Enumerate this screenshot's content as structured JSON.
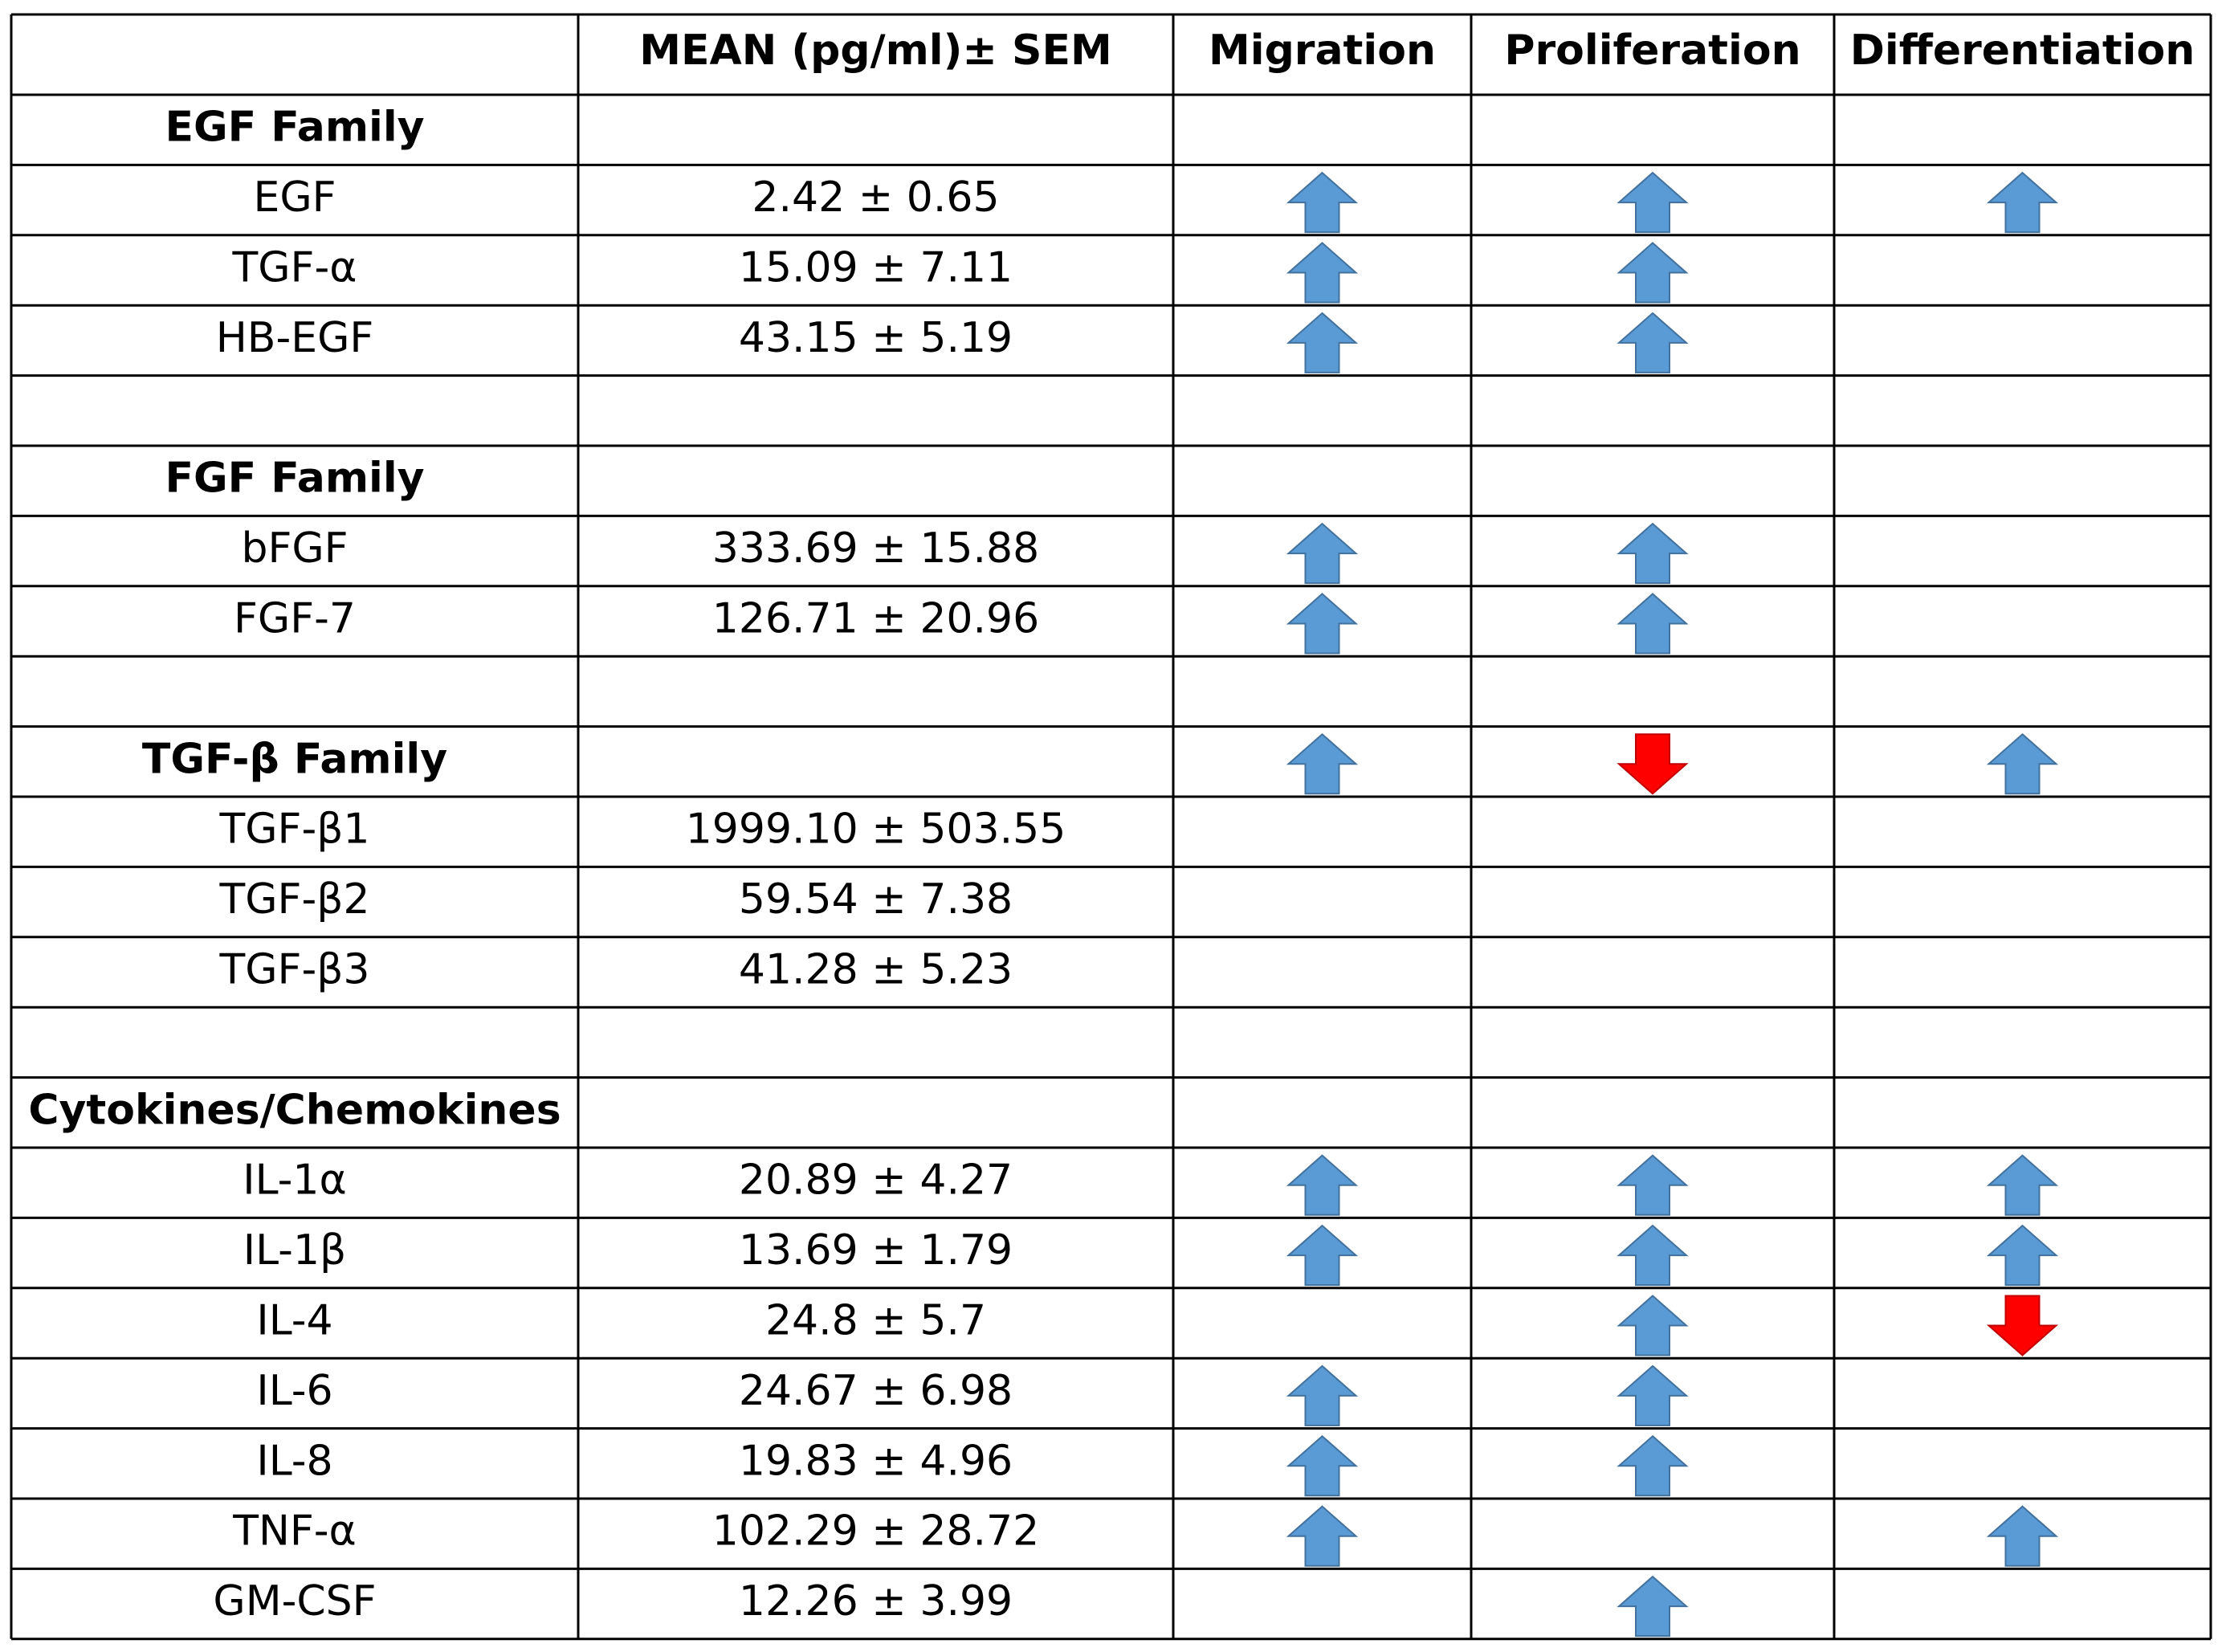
{
  "table": {
    "headers": [
      null,
      "MEAN (pg/ml)± SEM",
      "Migration",
      "Proliferation",
      "Differentiation"
    ],
    "rows": [
      {
        "cells": [
          "EGF Family",
          null,
          null,
          null,
          null
        ],
        "section": true
      },
      {
        "cells": [
          "EGF",
          "2.42 ± 0.65",
          "up",
          "up",
          "up"
        ]
      },
      {
        "cells": [
          "TGF-α",
          "15.09 ± 7.11",
          "up",
          "up",
          null
        ]
      },
      {
        "cells": [
          "HB-EGF",
          "43.15 ± 5.19",
          "up",
          "up",
          null
        ]
      },
      {
        "cells": [
          null,
          null,
          null,
          null,
          null
        ]
      },
      {
        "cells": [
          "FGF Family",
          null,
          null,
          null,
          null
        ],
        "section": true
      },
      {
        "cells": [
          "bFGF",
          "333.69 ± 15.88",
          "up",
          "up",
          null
        ]
      },
      {
        "cells": [
          "FGF-7",
          "126.71 ± 20.96",
          "up",
          "up",
          null
        ]
      },
      {
        "cells": [
          null,
          null,
          null,
          null,
          null
        ]
      },
      {
        "cells": [
          "TGF-β Family",
          null,
          "up",
          "down",
          "up"
        ],
        "section": true
      },
      {
        "cells": [
          "TGF-β1",
          "1999.10 ± 503.55",
          null,
          null,
          null
        ]
      },
      {
        "cells": [
          "TGF-β2",
          "59.54 ± 7.38",
          null,
          null,
          null
        ]
      },
      {
        "cells": [
          "TGF-β3",
          "41.28 ± 5.23",
          null,
          null,
          null
        ]
      },
      {
        "cells": [
          null,
          null,
          null,
          null,
          null
        ]
      },
      {
        "cells": [
          "Cytokines/Chemokines",
          null,
          null,
          null,
          null
        ],
        "section": true
      },
      {
        "cells": [
          "IL-1α",
          "20.89 ± 4.27",
          "up",
          "up",
          "up"
        ]
      },
      {
        "cells": [
          "IL-1β",
          "13.69 ± 1.79",
          "up",
          "up",
          "up"
        ]
      },
      {
        "cells": [
          "IL-4",
          "24.8 ± 5.7",
          null,
          "up",
          "down"
        ]
      },
      {
        "cells": [
          "IL-6",
          "24.67 ± 6.98",
          "up",
          "up",
          null
        ]
      },
      {
        "cells": [
          "IL-8",
          "19.83 ± 4.96",
          "up",
          "up",
          null
        ]
      },
      {
        "cells": [
          "TNF-α",
          "102.29 ± 28.72",
          "up",
          null,
          "up"
        ]
      },
      {
        "cells": [
          "GM-CSF",
          "12.26 ± 3.99",
          null,
          "up",
          null
        ]
      }
    ]
  }
}
